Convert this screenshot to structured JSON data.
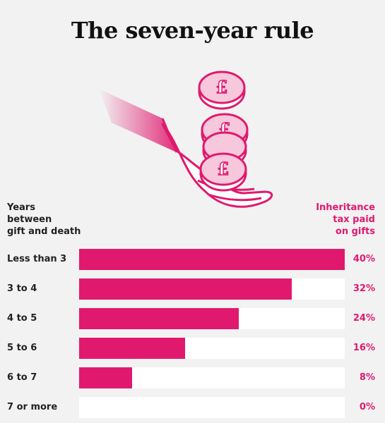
{
  "title": "The seven-year rule",
  "left_header": [
    "Years",
    "between",
    "gift and death"
  ],
  "right_header": [
    "Inheritance",
    "tax paid",
    "on gifts"
  ],
  "illustration": {
    "coin_symbol": "£",
    "icon": "hand-with-pound-coins"
  },
  "colors": {
    "accent": "#e0196e",
    "track": "#ffffff",
    "background": "#f2f2f2"
  },
  "chart_data": {
    "type": "bar",
    "orientation": "horizontal",
    "title": "The seven-year rule",
    "categories": [
      "Less than 3",
      "3 to 4",
      "4 to 5",
      "5 to 6",
      "6 to 7",
      "7 or more"
    ],
    "values": [
      40,
      32,
      24,
      16,
      8,
      0
    ],
    "value_labels": [
      "40%",
      "32%",
      "24%",
      "16%",
      "8%",
      "0%"
    ],
    "xlim": [
      0,
      40
    ],
    "grid": false
  }
}
